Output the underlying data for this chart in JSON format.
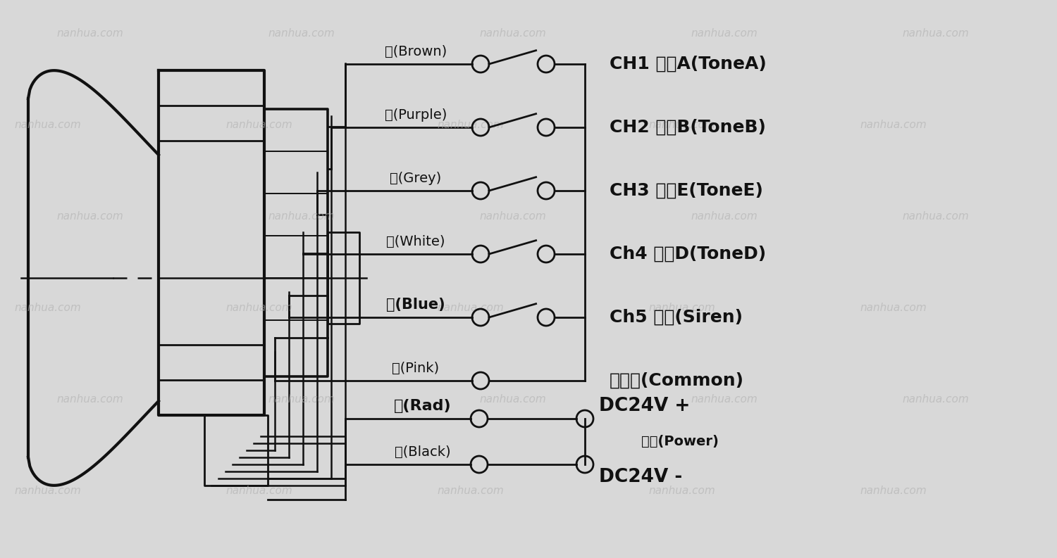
{
  "bg_color": "#d8d8d8",
  "line_color": "#111111",
  "wm_color": "#b0b0b0",
  "wm_text": "nanhua.com",
  "signal_wires": [
    {
      "label": "棕(Brown)",
      "bold": false,
      "has_switch": true,
      "ch_label": "CH1 音调A(ToneA)"
    },
    {
      "label": "紫(Purple)",
      "bold": false,
      "has_switch": true,
      "ch_label": "CH2 音调B(ToneB)"
    },
    {
      "label": "灰(Grey)",
      "bold": false,
      "has_switch": true,
      "ch_label": "CH3 音调E(ToneE)"
    },
    {
      "label": "白(White)",
      "bold": false,
      "has_switch": true,
      "ch_label": "Ch4 音调D(ToneD)"
    },
    {
      "label": "蓝(Blue)",
      "bold": true,
      "has_switch": true,
      "ch_label": "Ch5 电笛(Siren)"
    },
    {
      "label": "粉(Pink)",
      "bold": false,
      "has_switch": false,
      "ch_label": "公用线(Common)"
    }
  ],
  "power_wires": [
    {
      "label": "红(Rad)",
      "bold": true,
      "dc_label": "DC24V +",
      "power_label": "电源(Power)"
    },
    {
      "label": "黑(Black)",
      "bold": false,
      "dc_label": "DC24V -",
      "power_label": ""
    }
  ],
  "figsize": [
    15.0,
    7.93
  ],
  "dpi": 100
}
